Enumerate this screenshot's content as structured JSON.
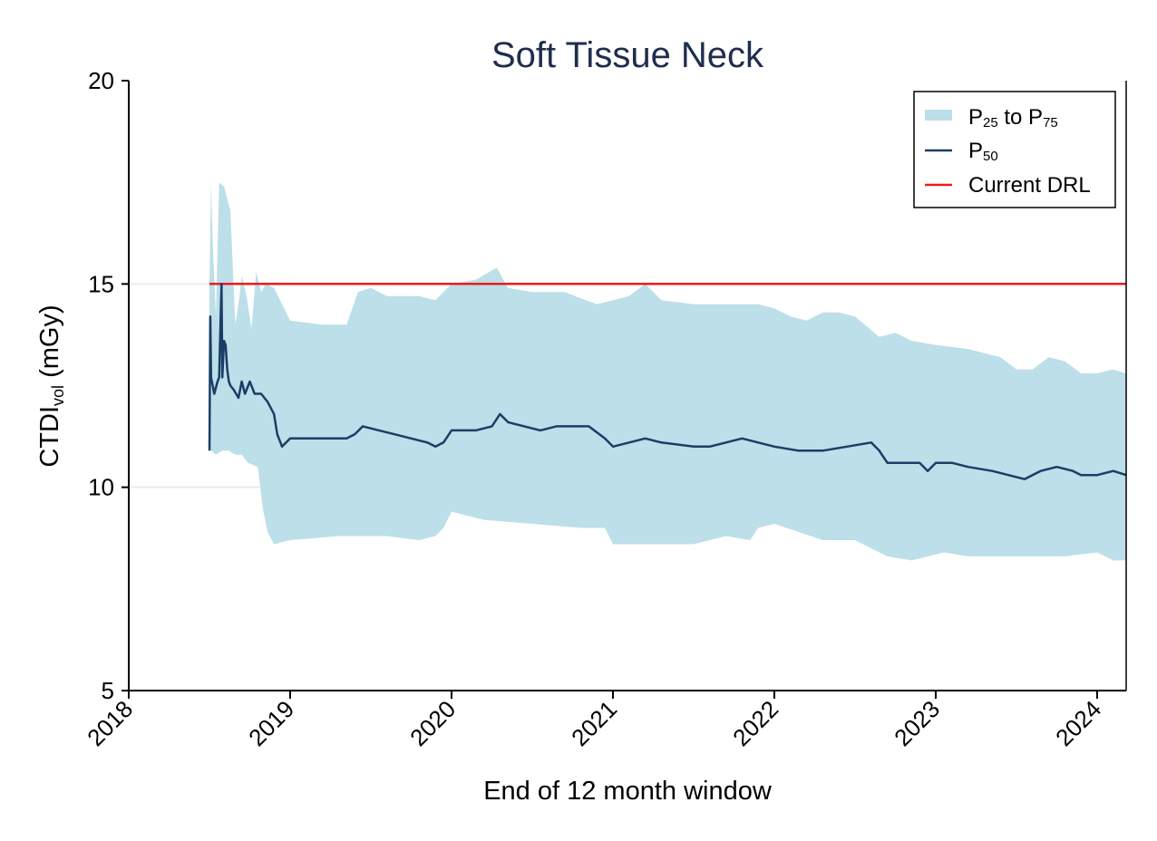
{
  "chart_data": {
    "type": "area",
    "title": "Soft Tissue Neck",
    "xlabel": "End of 12 month window",
    "ylabel": {
      "main": "CTDI",
      "sub": "vol",
      "unit": " (mGy)"
    },
    "xlim": [
      2018.0,
      2024.18
    ],
    "ylim": [
      5,
      20
    ],
    "x_ticks": [
      2018,
      2019,
      2020,
      2021,
      2022,
      2023,
      2024
    ],
    "y_ticks": [
      5,
      10,
      15,
      20
    ],
    "grid": "horizontal",
    "legend_position": "top-right",
    "colors": {
      "band": "#bcdfe9",
      "median": "#1a3e66",
      "drl": "#ee1c1c",
      "title": "#1f2d4d"
    },
    "legend": [
      {
        "key": "band",
        "label": {
          "p1": "P",
          "s1": "25",
          "mid": " to P",
          "s2": "75"
        }
      },
      {
        "key": "median",
        "label": {
          "p1": "P",
          "s1": "50"
        }
      },
      {
        "key": "drl",
        "label": "Current DRL"
      }
    ],
    "series": [
      {
        "key": "drl",
        "x": [
          2018.5,
          2024.18
        ],
        "y": [
          15.0,
          15.0
        ]
      },
      {
        "key": "p75",
        "x": [
          2018.5,
          2018.51,
          2018.52,
          2018.54,
          2018.56,
          2018.59,
          2018.63,
          2018.66,
          2018.68,
          2018.7,
          2018.73,
          2018.76,
          2018.79,
          2018.82,
          2018.85,
          2018.9,
          2019.0,
          2019.2,
          2019.35,
          2019.42,
          2019.5,
          2019.6,
          2019.8,
          2019.9,
          2019.95,
          2020.0,
          2020.15,
          2020.28,
          2020.35,
          2020.5,
          2020.7,
          2020.9,
          2021.0,
          2021.1,
          2021.2,
          2021.3,
          2021.5,
          2021.7,
          2021.9,
          2022.0,
          2022.1,
          2022.2,
          2022.3,
          2022.4,
          2022.5,
          2022.65,
          2022.75,
          2022.85,
          2023.0,
          2023.2,
          2023.4,
          2023.5,
          2023.6,
          2023.7,
          2023.8,
          2023.9,
          2024.0,
          2024.1,
          2024.18
        ],
        "y": [
          15.0,
          17.5,
          16.0,
          14.2,
          17.5,
          17.4,
          16.8,
          14.0,
          14.5,
          15.2,
          14.7,
          13.9,
          15.3,
          14.8,
          15.0,
          14.9,
          14.1,
          14.0,
          14.0,
          14.8,
          14.9,
          14.7,
          14.7,
          14.6,
          14.8,
          15.0,
          15.1,
          15.4,
          14.9,
          14.8,
          14.8,
          14.5,
          14.6,
          14.7,
          15.0,
          14.6,
          14.5,
          14.5,
          14.5,
          14.4,
          14.2,
          14.1,
          14.3,
          14.3,
          14.2,
          13.7,
          13.8,
          13.6,
          13.5,
          13.4,
          13.2,
          12.9,
          12.9,
          13.2,
          13.1,
          12.8,
          12.8,
          12.9,
          12.8
        ]
      },
      {
        "key": "p25",
        "x": [
          2018.5,
          2018.51,
          2018.54,
          2018.58,
          2018.62,
          2018.66,
          2018.7,
          2018.74,
          2018.8,
          2018.83,
          2018.86,
          2018.9,
          2019.0,
          2019.3,
          2019.6,
          2019.8,
          2019.9,
          2019.95,
          2020.0,
          2020.2,
          2020.5,
          2020.8,
          2020.95,
          2021.0,
          2021.2,
          2021.5,
          2021.7,
          2021.85,
          2021.9,
          2022.0,
          2022.3,
          2022.5,
          2022.6,
          2022.7,
          2022.85,
          2022.95,
          2023.05,
          2023.2,
          2023.5,
          2023.8,
          2024.0,
          2024.1,
          2024.18
        ],
        "y": [
          10.9,
          10.9,
          10.8,
          10.9,
          10.9,
          10.8,
          10.8,
          10.6,
          10.5,
          9.5,
          8.9,
          8.6,
          8.7,
          8.8,
          8.8,
          8.7,
          8.8,
          9.0,
          9.4,
          9.2,
          9.1,
          9.0,
          9.0,
          8.6,
          8.6,
          8.6,
          8.8,
          8.7,
          9.0,
          9.1,
          8.7,
          8.7,
          8.5,
          8.3,
          8.2,
          8.3,
          8.4,
          8.3,
          8.3,
          8.3,
          8.4,
          8.2,
          8.2
        ]
      },
      {
        "key": "p50",
        "x": [
          2018.5,
          2018.505,
          2018.51,
          2018.515,
          2018.53,
          2018.55,
          2018.56,
          2018.575,
          2018.58,
          2018.59,
          2018.6,
          2018.61,
          2018.62,
          2018.63,
          2018.65,
          2018.68,
          2018.7,
          2018.72,
          2018.75,
          2018.78,
          2018.82,
          2018.86,
          2018.9,
          2018.92,
          2018.95,
          2019.0,
          2019.2,
          2019.35,
          2019.4,
          2019.45,
          2019.55,
          2019.65,
          2019.75,
          2019.85,
          2019.9,
          2019.95,
          2020.0,
          2020.15,
          2020.25,
          2020.3,
          2020.35,
          2020.45,
          2020.55,
          2020.65,
          2020.85,
          2020.95,
          2021.0,
          2021.1,
          2021.2,
          2021.3,
          2021.5,
          2021.6,
          2021.7,
          2021.8,
          2021.9,
          2022.0,
          2022.15,
          2022.3,
          2022.45,
          2022.6,
          2022.65,
          2022.7,
          2022.8,
          2022.9,
          2022.95,
          2023.0,
          2023.1,
          2023.2,
          2023.35,
          2023.45,
          2023.55,
          2023.65,
          2023.75,
          2023.85,
          2023.9,
          2024.0,
          2024.1,
          2024.18
        ],
        "y": [
          10.9,
          14.2,
          12.7,
          12.6,
          12.3,
          12.6,
          12.7,
          15.0,
          12.7,
          13.6,
          13.5,
          12.9,
          12.6,
          12.5,
          12.4,
          12.2,
          12.6,
          12.3,
          12.6,
          12.3,
          12.3,
          12.1,
          11.8,
          11.3,
          11.0,
          11.2,
          11.2,
          11.2,
          11.3,
          11.5,
          11.4,
          11.3,
          11.2,
          11.1,
          11.0,
          11.1,
          11.4,
          11.4,
          11.5,
          11.8,
          11.6,
          11.5,
          11.4,
          11.5,
          11.5,
          11.2,
          11.0,
          11.1,
          11.2,
          11.1,
          11.0,
          11.0,
          11.1,
          11.2,
          11.1,
          11.0,
          10.9,
          10.9,
          11.0,
          11.1,
          10.9,
          10.6,
          10.6,
          10.6,
          10.4,
          10.6,
          10.6,
          10.5,
          10.4,
          10.3,
          10.2,
          10.4,
          10.5,
          10.4,
          10.3,
          10.3,
          10.4,
          10.3
        ]
      }
    ]
  }
}
